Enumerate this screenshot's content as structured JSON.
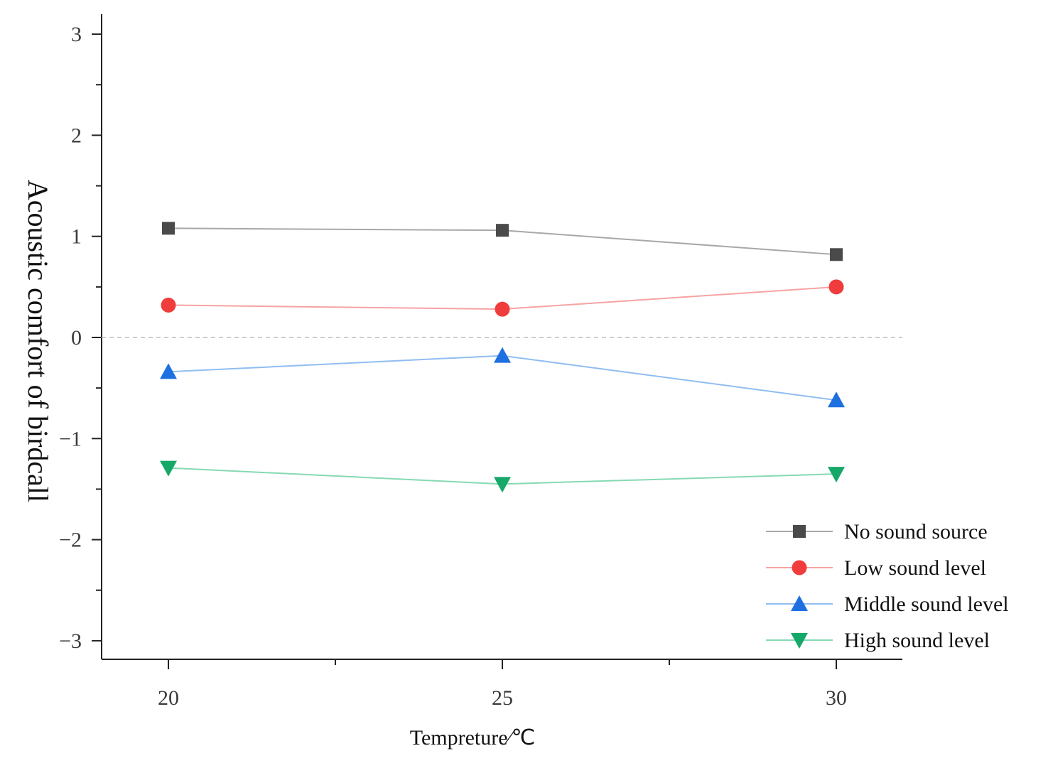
{
  "chart_data": {
    "type": "line",
    "title": "",
    "xlabel": "Tempreture∕℃",
    "ylabel": "Acoustic comfort of birdcall",
    "x": [
      20,
      25,
      30
    ],
    "xlim": [
      19,
      31
    ],
    "ylim": [
      -3.2,
      3.2
    ],
    "yticks": [
      3,
      2,
      1,
      0,
      -1,
      -2,
      -3
    ],
    "ytick_labels": [
      "3",
      "2",
      "1",
      "0",
      "−1",
      "−2",
      "−3"
    ],
    "xtick_labels": [
      "20",
      "25",
      "30"
    ],
    "reference_line_y": 0,
    "legend_position": "bottom-right",
    "series": [
      {
        "name": "No sound source",
        "values": [
          1.08,
          1.06,
          0.82
        ],
        "marker": "square",
        "color": "#4a4a4a",
        "line_color": "#a8a8a8"
      },
      {
        "name": "Low sound level",
        "values": [
          0.32,
          0.28,
          0.5
        ],
        "marker": "circle",
        "color": "#f03c3c",
        "line_color": "#f6a3a3"
      },
      {
        "name": "Middle sound level",
        "values": [
          -0.34,
          -0.18,
          -0.62
        ],
        "marker": "triangle-up",
        "color": "#1e6fe0",
        "line_color": "#90bdf2"
      },
      {
        "name": "High sound level",
        "values": [
          -1.29,
          -1.45,
          -1.35
        ],
        "marker": "triangle-down",
        "color": "#15a868",
        "line_color": "#86d9b3"
      }
    ]
  }
}
